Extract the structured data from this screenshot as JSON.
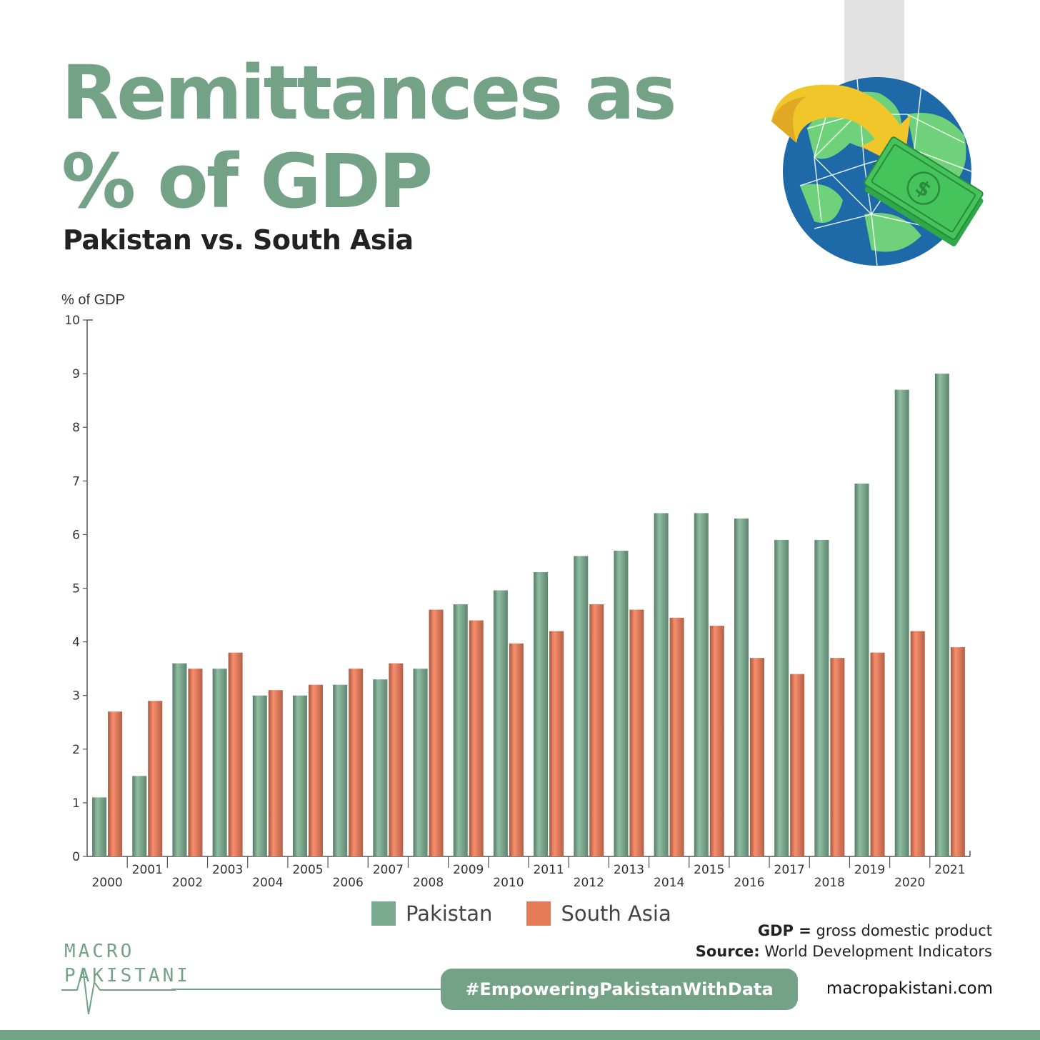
{
  "header": {
    "title_line1": "Remittances as",
    "title_line2": "% of GDP",
    "subtitle": "Pakistan vs. South Asia"
  },
  "colors": {
    "pakistan": "#7aaa8e",
    "south_asia": "#e57a58",
    "brand": "#74a287"
  },
  "chart_data": {
    "type": "bar",
    "ylabel": "% of GDP",
    "ylim": [
      0,
      10
    ],
    "yticks": [
      0,
      1,
      2,
      3,
      4,
      5,
      6,
      7,
      8,
      9,
      10
    ],
    "categories": [
      "2000",
      "2001",
      "2002",
      "2003",
      "2004",
      "2005",
      "2006",
      "2007",
      "2008",
      "2009",
      "2010",
      "2011",
      "2012",
      "2013",
      "2014",
      "2015",
      "2016",
      "2017",
      "2018",
      "2019",
      "2020",
      "2021"
    ],
    "series": [
      {
        "name": "Pakistan",
        "values": [
          1.1,
          1.5,
          3.6,
          3.5,
          3.0,
          3.0,
          3.2,
          3.3,
          3.5,
          4.7,
          4.96,
          5.3,
          5.6,
          5.7,
          6.4,
          6.4,
          6.3,
          5.9,
          5.9,
          6.95,
          8.7,
          9.0
        ]
      },
      {
        "name": "South Asia",
        "values": [
          2.7,
          2.9,
          3.5,
          3.8,
          3.1,
          3.2,
          3.5,
          3.6,
          4.6,
          4.4,
          3.97,
          4.2,
          4.7,
          4.6,
          4.45,
          4.3,
          3.7,
          3.4,
          3.7,
          3.8,
          4.2,
          3.9
        ]
      }
    ],
    "legend_position": "bottom-center"
  },
  "footnote": {
    "gdp_key": "GDP =",
    "gdp_value": "gross domestic product",
    "source_key": "Source:",
    "source_value": "World Development Indicators"
  },
  "logo": {
    "line1": "MACRO",
    "line2": "PAKISTANI"
  },
  "footer": {
    "hashtag": "#EmpoweringPakistanWithData",
    "website": "macropakistani.com"
  },
  "icons": {
    "globe": "globe-money-icon"
  }
}
